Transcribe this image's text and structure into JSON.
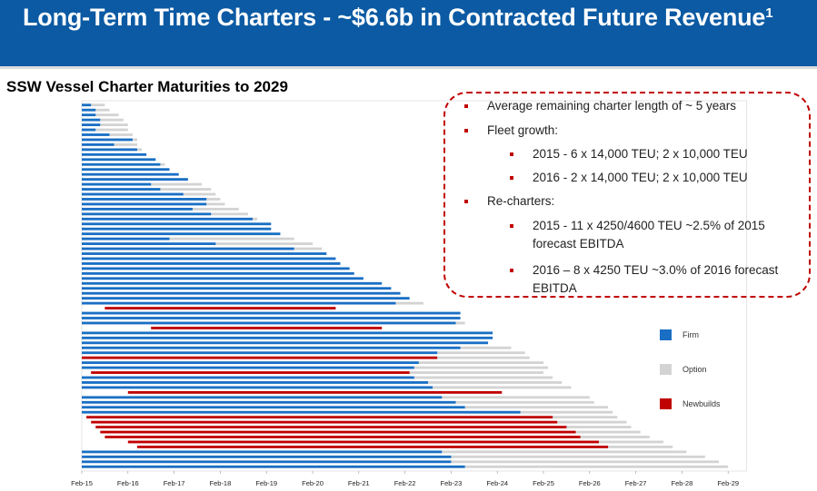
{
  "header": {
    "title": "Long-Term Time Charters - ~$6.6b in Contracted Future Revenue",
    "title_footnote": "1"
  },
  "colors": {
    "header_bg": "#0b5aa3",
    "firm": "#1a6fc4",
    "option": "#d3d3d3",
    "newbuild": "#c00000",
    "box_border": "#c00000"
  },
  "subtitle": "SSW Vessel Charter Maturities to 2029",
  "notes": {
    "line1": "Average remaining charter length of ~ 5 years",
    "line2": "Fleet growth:",
    "line3": "2015 - 6 x 14,000 TEU; 2 x 10,000 TEU",
    "line4": "2016 - 2 x 14,000 TEU; 2 x 10,000 TEU",
    "line5": "Re-charters:",
    "line6a": "2015 - 11 x 4250/4600 TEU ~2.5% of 2015",
    "line6b": "forecast EBITDA",
    "line7a": "2016 – 8 x 4250 TEU ~3.0% of 2016 forecast",
    "line7b": "EBITDA"
  },
  "chart_data": {
    "type": "bar",
    "orientation": "horizontal-gantt",
    "title": "SSW Vessel Charter Maturities to 2029",
    "x_axis": {
      "ticks": [
        "Feb-15",
        "Feb-16",
        "Feb-17",
        "Feb-18",
        "Feb-19",
        "Feb-20",
        "Feb-21",
        "Feb-22",
        "Feb-23",
        "Feb-24",
        "Feb-25",
        "Feb-26",
        "Feb-27",
        "Feb-28",
        "Feb-29"
      ],
      "range_years": [
        2015.0,
        2029.4
      ]
    },
    "legend": [
      {
        "key": "firm",
        "label": "Firm"
      },
      {
        "key": "option",
        "label": "Option"
      },
      {
        "key": "newbuild",
        "label": "Newbuilds"
      }
    ],
    "legend_position": "right",
    "series_note": "Each vessel: start year (start), firm charter end year (firm_end), option end year (option_end). Newbuild firm periods shown in red.",
    "vessels": [
      {
        "start": 2015.0,
        "firm_end": 2015.2,
        "option_end": 2015.5,
        "newbuild": false
      },
      {
        "start": 2015.0,
        "firm_end": 2015.3,
        "option_end": 2015.6,
        "newbuild": false
      },
      {
        "start": 2015.0,
        "firm_end": 2015.3,
        "option_end": 2015.8,
        "newbuild": false
      },
      {
        "start": 2015.0,
        "firm_end": 2015.4,
        "option_end": 2015.9,
        "newbuild": false
      },
      {
        "start": 2015.0,
        "firm_end": 2015.4,
        "option_end": 2016.0,
        "newbuild": false
      },
      {
        "start": 2015.0,
        "firm_end": 2015.3,
        "option_end": 2016.0,
        "newbuild": false
      },
      {
        "start": 2015.0,
        "firm_end": 2015.6,
        "option_end": 2016.1,
        "newbuild": false
      },
      {
        "start": 2015.0,
        "firm_end": 2016.1,
        "option_end": 2016.2,
        "newbuild": false
      },
      {
        "start": 2015.0,
        "firm_end": 2015.7,
        "option_end": 2016.2,
        "newbuild": false
      },
      {
        "start": 2015.0,
        "firm_end": 2016.2,
        "option_end": 2016.3,
        "newbuild": false
      },
      {
        "start": 2015.0,
        "firm_end": 2016.4,
        "option_end": 2016.4,
        "newbuild": false
      },
      {
        "start": 2015.0,
        "firm_end": 2016.6,
        "option_end": 2016.6,
        "newbuild": false
      },
      {
        "start": 2015.0,
        "firm_end": 2016.7,
        "option_end": 2016.8,
        "newbuild": false
      },
      {
        "start": 2015.0,
        "firm_end": 2016.9,
        "option_end": 2016.9,
        "newbuild": false
      },
      {
        "start": 2015.0,
        "firm_end": 2017.1,
        "option_end": 2017.1,
        "newbuild": false
      },
      {
        "start": 2015.0,
        "firm_end": 2017.3,
        "option_end": 2017.3,
        "newbuild": false
      },
      {
        "start": 2015.0,
        "firm_end": 2016.5,
        "option_end": 2017.6,
        "newbuild": false
      },
      {
        "start": 2015.0,
        "firm_end": 2016.7,
        "option_end": 2017.8,
        "newbuild": false
      },
      {
        "start": 2015.0,
        "firm_end": 2017.2,
        "option_end": 2017.9,
        "newbuild": false
      },
      {
        "start": 2015.0,
        "firm_end": 2017.7,
        "option_end": 2018.0,
        "newbuild": false
      },
      {
        "start": 2015.0,
        "firm_end": 2017.7,
        "option_end": 2018.1,
        "newbuild": false
      },
      {
        "start": 2015.0,
        "firm_end": 2017.4,
        "option_end": 2018.4,
        "newbuild": false
      },
      {
        "start": 2015.0,
        "firm_end": 2017.8,
        "option_end": 2018.6,
        "newbuild": false
      },
      {
        "start": 2015.0,
        "firm_end": 2018.7,
        "option_end": 2018.8,
        "newbuild": false
      },
      {
        "start": 2015.0,
        "firm_end": 2019.1,
        "option_end": 2019.1,
        "newbuild": false
      },
      {
        "start": 2015.0,
        "firm_end": 2019.1,
        "option_end": 2019.1,
        "newbuild": false
      },
      {
        "start": 2015.0,
        "firm_end": 2019.3,
        "option_end": 2019.3,
        "newbuild": false
      },
      {
        "start": 2015.0,
        "firm_end": 2016.9,
        "option_end": 2019.6,
        "newbuild": false
      },
      {
        "start": 2015.0,
        "firm_end": 2017.9,
        "option_end": 2020.0,
        "newbuild": false
      },
      {
        "start": 2015.0,
        "firm_end": 2019.6,
        "option_end": 2020.2,
        "newbuild": false
      },
      {
        "start": 2015.0,
        "firm_end": 2020.3,
        "option_end": 2020.3,
        "newbuild": false
      },
      {
        "start": 2015.0,
        "firm_end": 2020.5,
        "option_end": 2020.5,
        "newbuild": false
      },
      {
        "start": 2015.0,
        "firm_end": 2020.6,
        "option_end": 2020.6,
        "newbuild": false
      },
      {
        "start": 2015.0,
        "firm_end": 2020.8,
        "option_end": 2020.8,
        "newbuild": false
      },
      {
        "start": 2015.0,
        "firm_end": 2020.9,
        "option_end": 2020.9,
        "newbuild": false
      },
      {
        "start": 2015.0,
        "firm_end": 2021.1,
        "option_end": 2021.1,
        "newbuild": false
      },
      {
        "start": 2015.0,
        "firm_end": 2021.5,
        "option_end": 2021.5,
        "newbuild": false
      },
      {
        "start": 2015.0,
        "firm_end": 2021.7,
        "option_end": 2021.7,
        "newbuild": false
      },
      {
        "start": 2015.0,
        "firm_end": 2021.9,
        "option_end": 2021.9,
        "newbuild": false
      },
      {
        "start": 2015.0,
        "firm_end": 2022.1,
        "option_end": 2022.1,
        "newbuild": false
      },
      {
        "start": 2015.0,
        "firm_end": 2021.8,
        "option_end": 2022.4,
        "newbuild": false
      },
      {
        "start": 2015.5,
        "firm_end": 2020.5,
        "option_end": 2020.5,
        "newbuild": true
      },
      {
        "start": 2015.0,
        "firm_end": 2023.2,
        "option_end": 2023.2,
        "newbuild": false
      },
      {
        "start": 2015.0,
        "firm_end": 2023.2,
        "option_end": 2023.2,
        "newbuild": false
      },
      {
        "start": 2015.0,
        "firm_end": 2023.1,
        "option_end": 2023.3,
        "newbuild": false
      },
      {
        "start": 2016.5,
        "firm_end": 2021.5,
        "option_end": 2021.5,
        "newbuild": true
      },
      {
        "start": 2015.0,
        "firm_end": 2023.9,
        "option_end": 2023.9,
        "newbuild": false
      },
      {
        "start": 2015.0,
        "firm_end": 2023.9,
        "option_end": 2023.9,
        "newbuild": false
      },
      {
        "start": 2015.0,
        "firm_end": 2023.8,
        "option_end": 2023.8,
        "newbuild": false
      },
      {
        "start": 2015.0,
        "firm_end": 2023.2,
        "option_end": 2024.3,
        "newbuild": false
      },
      {
        "start": 2015.0,
        "firm_end": 2022.7,
        "option_end": 2024.6,
        "newbuild": false
      },
      {
        "start": 2015.0,
        "firm_end": 2022.7,
        "option_end": 2024.7,
        "newbuild": true
      },
      {
        "start": 2015.0,
        "firm_end": 2022.3,
        "option_end": 2025.0,
        "newbuild": false
      },
      {
        "start": 2015.0,
        "firm_end": 2022.2,
        "option_end": 2025.1,
        "newbuild": false
      },
      {
        "start": 2015.2,
        "firm_end": 2022.1,
        "option_end": 2025.0,
        "newbuild": true
      },
      {
        "start": 2015.0,
        "firm_end": 2022.2,
        "option_end": 2025.2,
        "newbuild": false
      },
      {
        "start": 2015.0,
        "firm_end": 2022.5,
        "option_end": 2025.4,
        "newbuild": false
      },
      {
        "start": 2015.0,
        "firm_end": 2022.6,
        "option_end": 2025.6,
        "newbuild": false
      },
      {
        "start": 2016.0,
        "firm_end": 2024.1,
        "option_end": 2024.1,
        "newbuild": true
      },
      {
        "start": 2015.0,
        "firm_end": 2022.8,
        "option_end": 2026.0,
        "newbuild": false
      },
      {
        "start": 2015.0,
        "firm_end": 2023.1,
        "option_end": 2026.1,
        "newbuild": false
      },
      {
        "start": 2015.0,
        "firm_end": 2023.3,
        "option_end": 2026.4,
        "newbuild": false
      },
      {
        "start": 2015.0,
        "firm_end": 2024.5,
        "option_end": 2026.5,
        "newbuild": false
      },
      {
        "start": 2015.1,
        "firm_end": 2025.2,
        "option_end": 2026.6,
        "newbuild": true
      },
      {
        "start": 2015.2,
        "firm_end": 2025.3,
        "option_end": 2026.8,
        "newbuild": true
      },
      {
        "start": 2015.3,
        "firm_end": 2025.5,
        "option_end": 2026.9,
        "newbuild": true
      },
      {
        "start": 2015.4,
        "firm_end": 2025.7,
        "option_end": 2027.1,
        "newbuild": true
      },
      {
        "start": 2015.5,
        "firm_end": 2025.8,
        "option_end": 2027.3,
        "newbuild": true
      },
      {
        "start": 2016.0,
        "firm_end": 2026.2,
        "option_end": 2027.6,
        "newbuild": true
      },
      {
        "start": 2016.2,
        "firm_end": 2026.4,
        "option_end": 2027.8,
        "newbuild": true
      },
      {
        "start": 2015.0,
        "firm_end": 2022.8,
        "option_end": 2028.1,
        "newbuild": false
      },
      {
        "start": 2015.0,
        "firm_end": 2023.0,
        "option_end": 2028.5,
        "newbuild": false
      },
      {
        "start": 2015.0,
        "firm_end": 2023.0,
        "option_end": 2028.8,
        "newbuild": false
      },
      {
        "start": 2015.0,
        "firm_end": 2023.3,
        "option_end": 2029.0,
        "newbuild": false
      }
    ]
  }
}
